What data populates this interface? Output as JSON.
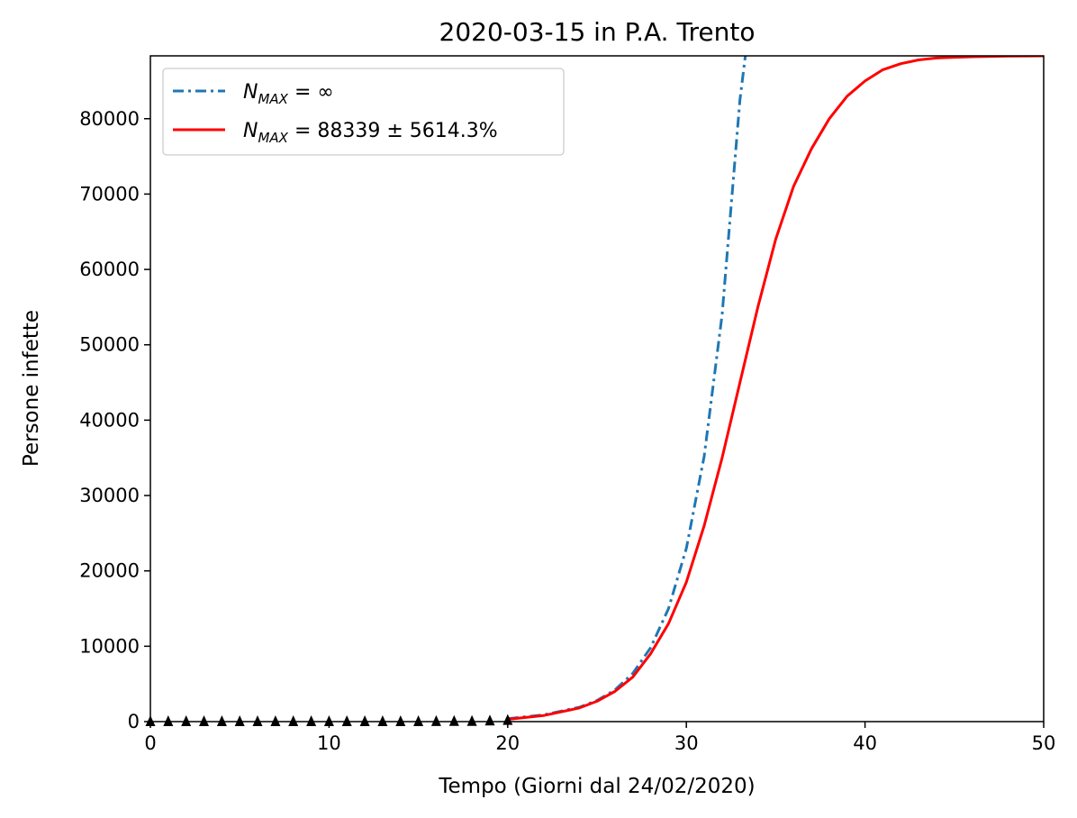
{
  "chart_data": {
    "type": "line",
    "title": "2020-03-15 in P.A. Trento",
    "xlabel": "Tempo (Giorni dal 24/02/2020)",
    "ylabel": "Persone infette",
    "xlim": [
      0,
      50
    ],
    "ylim": [
      0,
      88339
    ],
    "xticks": [
      0,
      10,
      20,
      30,
      40,
      50
    ],
    "yticks": [
      0,
      10000,
      20000,
      30000,
      40000,
      50000,
      60000,
      70000,
      80000
    ],
    "grid": false,
    "legend_position": "top-left",
    "legend": [
      {
        "series": "exponential",
        "symbol": "N",
        "subscript": "MAX",
        "expression": " = ∞",
        "color": "#1f77b4",
        "style": "dash-dot"
      },
      {
        "series": "logistic",
        "symbol": "N",
        "subscript": "MAX",
        "expression": " = 88339 ± 5614.3%",
        "color": "#ff0000",
        "style": "solid"
      }
    ],
    "series": [
      {
        "id": "exponential",
        "type": "line",
        "color": "#1f77b4",
        "style": "dash-dot",
        "x": [
          20,
          22,
          24,
          25,
          26,
          27,
          28,
          29,
          30,
          31,
          32,
          33,
          33.3
        ],
        "y": [
          400,
          900,
          1900,
          2800,
          4200,
          6400,
          9800,
          15000,
          23000,
          35200,
          54000,
          82500,
          88339
        ]
      },
      {
        "id": "logistic",
        "type": "line",
        "color": "#ff0000",
        "style": "solid",
        "x": [
          20,
          22,
          24,
          25,
          26,
          27,
          28,
          29,
          30,
          31,
          32,
          33,
          34,
          35,
          36,
          37,
          38,
          39,
          40,
          41,
          42,
          43,
          44,
          45,
          46,
          47,
          48,
          50
        ],
        "y": [
          300,
          800,
          1800,
          2700,
          4000,
          5900,
          9000,
          13000,
          18500,
          26000,
          35000,
          45000,
          55000,
          64000,
          71000,
          76000,
          80000,
          83000,
          85000,
          86500,
          87300,
          87800,
          88050,
          88150,
          88220,
          88270,
          88300,
          88339
        ]
      },
      {
        "id": "observed",
        "type": "scatter",
        "marker": "triangle-up",
        "color": "#000000",
        "x": [
          0,
          1,
          2,
          3,
          4,
          5,
          6,
          7,
          8,
          9,
          10,
          11,
          12,
          13,
          14,
          15,
          16,
          17,
          18,
          19,
          20
        ],
        "y": [
          0,
          0,
          0,
          0,
          0,
          0,
          0,
          0,
          0,
          0,
          0,
          0,
          0,
          0,
          0,
          0,
          10,
          20,
          40,
          100,
          170
        ]
      }
    ]
  }
}
